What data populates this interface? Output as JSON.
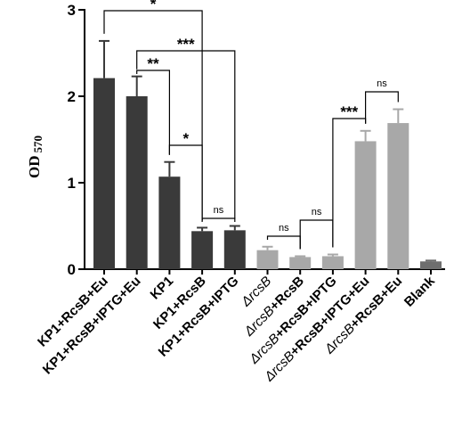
{
  "chart_data": {
    "type": "bar",
    "ylabel": "OD",
    "ylabel_subscript": "570",
    "ylim": [
      0,
      3
    ],
    "yticks": [
      "0",
      "1",
      "2",
      "3"
    ],
    "grid": false,
    "categories": [
      {
        "prefix": "",
        "italic": "",
        "rest": "KP1+RcsB+Eu"
      },
      {
        "prefix": "",
        "italic": "",
        "rest": "KP1+RcsB+IPTG+Eu"
      },
      {
        "prefix": "",
        "italic": "",
        "rest": "KP1"
      },
      {
        "prefix": "",
        "italic": "",
        "rest": "KP1+RcsB"
      },
      {
        "prefix": "",
        "italic": "",
        "rest": "KP1+RcsB+IPTG"
      },
      {
        "prefix": "Δ",
        "italic": "rcsB",
        "rest": ""
      },
      {
        "prefix": "Δ",
        "italic": "rcsB",
        "rest": "+RcsB"
      },
      {
        "prefix": "Δ",
        "italic": "rcsB",
        "rest": "+RcsB+IPTG"
      },
      {
        "prefix": "Δ",
        "italic": "rcsB",
        "rest": "+RcsB+IPTG+Eu"
      },
      {
        "prefix": "Δ",
        "italic": "rcsB",
        "rest": "+RcsB+Eu"
      },
      {
        "prefix": "",
        "italic": "",
        "rest": "Blank"
      }
    ],
    "values": [
      2.21,
      2.0,
      1.07,
      0.44,
      0.45,
      0.22,
      0.14,
      0.15,
      1.48,
      1.69,
      0.09
    ],
    "errors": [
      0.43,
      0.23,
      0.17,
      0.04,
      0.05,
      0.04,
      0.01,
      0.02,
      0.12,
      0.16,
      0.01
    ],
    "colors": [
      "#3a3a3a",
      "#3a3a3a",
      "#3a3a3a",
      "#3a3a3a",
      "#3a3a3a",
      "#a8a8a8",
      "#a8a8a8",
      "#a8a8a8",
      "#a8a8a8",
      "#a8a8a8",
      "#6e6e6e"
    ],
    "significance": [
      {
        "from": 0,
        "to": 3,
        "label": "*"
      },
      {
        "from": 1,
        "to": 4,
        "label": "***"
      },
      {
        "from": 1,
        "to": 2,
        "label": "**"
      },
      {
        "from": 2,
        "to": 3,
        "label": "*"
      },
      {
        "from": 3,
        "to": 4,
        "label": "ns"
      },
      {
        "from": 5,
        "to": 6,
        "label": "ns"
      },
      {
        "from": 6,
        "to": 7,
        "label": "ns"
      },
      {
        "from": 7,
        "to": 8,
        "label": "***"
      },
      {
        "from": 8,
        "to": 9,
        "label": "ns"
      }
    ]
  }
}
